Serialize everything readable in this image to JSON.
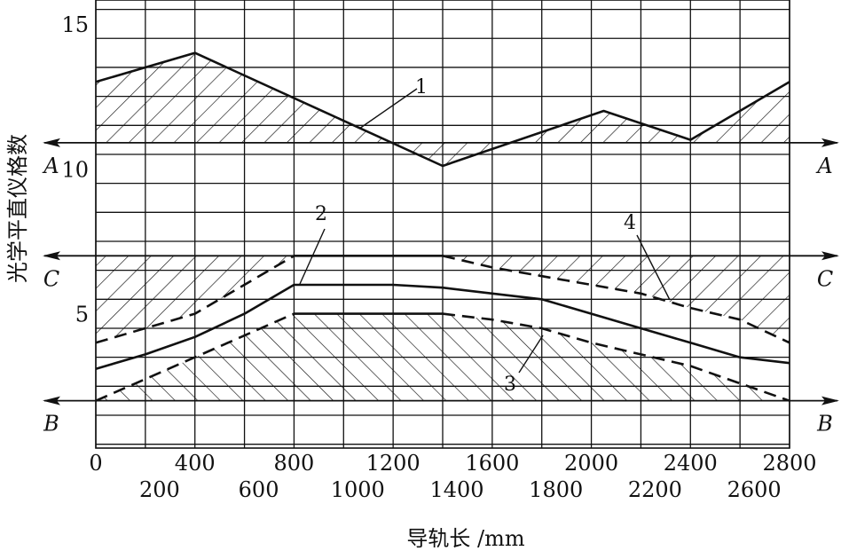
{
  "chart_data": {
    "type": "line",
    "xlabel": "导轨长 /mm",
    "ylabel": "光学平直仪格数",
    "xlim": [
      0,
      2800
    ],
    "ylim": [
      -1,
      16
    ],
    "grid": true,
    "x_ticks_upper": [
      "0",
      "400",
      "800",
      "1200",
      "1600",
      "2000",
      "2400",
      "2800"
    ],
    "x_ticks_lower": [
      "200",
      "600",
      "1000",
      "1400",
      "1800",
      "2200",
      "2600"
    ],
    "y_ticks": [
      "5",
      "10",
      "15"
    ],
    "reference_lines": [
      {
        "label": "A",
        "y": 10.9
      },
      {
        "label": "C",
        "y": 7
      },
      {
        "label": "B",
        "y": 2
      }
    ],
    "series": [
      {
        "name": "1",
        "style": "solid",
        "hatch": "hatched area above line A",
        "x": [
          0,
          400,
          1400,
          2050,
          2400,
          2800
        ],
        "y": [
          13,
          14,
          10.1,
          12,
          11,
          13
        ]
      },
      {
        "name": "2",
        "style": "solid",
        "x": [
          0,
          200,
          400,
          600,
          800,
          1200,
          1400,
          1600,
          1800,
          2000,
          2200,
          2400,
          2600,
          2800
        ],
        "y": [
          3.1,
          3.6,
          4.2,
          5.0,
          6.0,
          6.0,
          5.9,
          5.7,
          5.5,
          5.0,
          4.5,
          4.0,
          3.5,
          3.3
        ]
      },
      {
        "name": "3",
        "style": "solid then dashed",
        "hatch": "hatched area above line B",
        "x": [
          0,
          800,
          1400,
          1600,
          1800,
          2000,
          2200,
          2400,
          2600,
          2800
        ],
        "y": [
          2.0,
          5.0,
          5.0,
          4.8,
          4.5,
          4.0,
          3.6,
          3.2,
          2.6,
          2.0
        ]
      },
      {
        "name": "4",
        "style": "dashed then solid",
        "hatch": "hatched area below line C",
        "x": [
          0,
          400,
          800,
          1400,
          1600,
          1800,
          2000,
          2200,
          2400,
          2600,
          2800
        ],
        "y": [
          4.0,
          5.0,
          7.0,
          7.0,
          6.6,
          6.3,
          6.0,
          5.7,
          5.2,
          4.8,
          4.0
        ]
      }
    ],
    "callouts": [
      "1",
      "2",
      "3",
      "4"
    ]
  }
}
